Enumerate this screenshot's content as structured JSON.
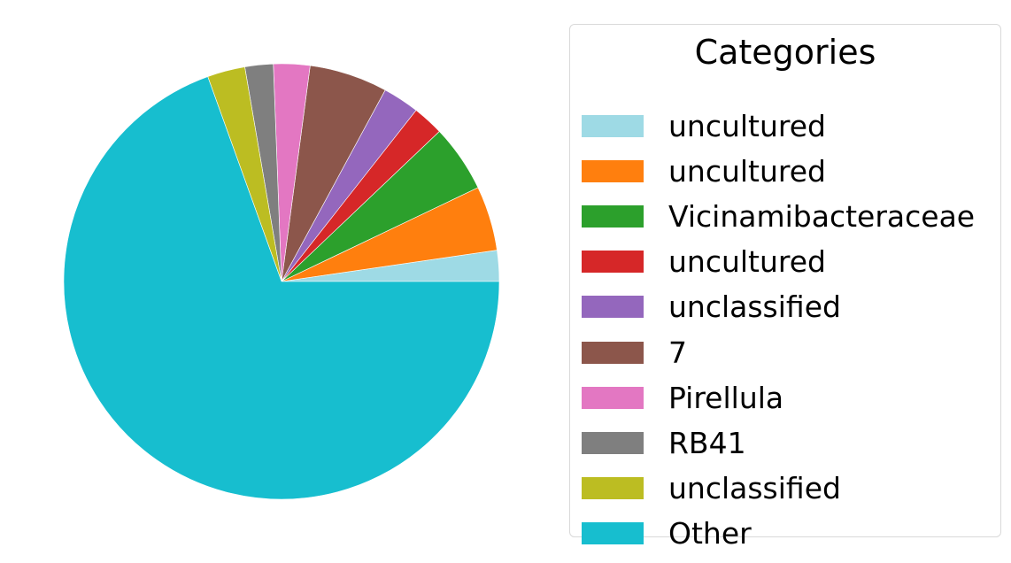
{
  "chart_data": {
    "type": "pie",
    "title": "",
    "start_angle_deg": 0,
    "direction": "counterclockwise",
    "slices": [
      {
        "label": "uncultured",
        "value": 2.3,
        "color": "#9edae5"
      },
      {
        "label": "uncultured",
        "value": 4.8,
        "color": "#ff7f0e"
      },
      {
        "label": "Vicinamibacteraceae",
        "value": 5.0,
        "color": "#2ca02c"
      },
      {
        "label": "uncultured",
        "value": 2.3,
        "color": "#d62728"
      },
      {
        "label": "unclassified",
        "value": 2.7,
        "color": "#9467bd"
      },
      {
        "label": "7",
        "value": 5.8,
        "color": "#8c564b"
      },
      {
        "label": "Pirellula",
        "value": 2.7,
        "color": "#e377c2"
      },
      {
        "label": "RB41",
        "value": 2.1,
        "color": "#7f7f7f"
      },
      {
        "label": "unclassified",
        "value": 2.8,
        "color": "#bcbd22"
      },
      {
        "label": "Other",
        "value": 69.5,
        "color": "#17becf"
      }
    ],
    "legend": {
      "title": "Categories",
      "placement": "right"
    }
  }
}
